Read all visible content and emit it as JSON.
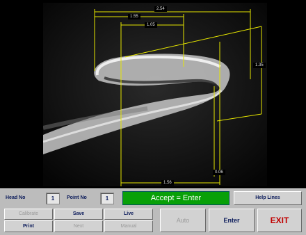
{
  "viewer": {
    "dimensions": [
      "2.54",
      "1.55",
      "1.05",
      "1.35",
      "1.56",
      "0.06"
    ]
  },
  "status": {
    "head_label": "Head No",
    "head_value": "1",
    "point_label": "Point No",
    "point_value": "1",
    "accept_text": "Accept = Enter",
    "help_lines": "Help Lines"
  },
  "buttons": {
    "calibrate": "Calibrate",
    "save": "Save",
    "live": "Live",
    "print": "Print",
    "next": "Next",
    "manual": "Manual",
    "auto": "Auto",
    "enter": "Enter",
    "exit": "EXIT"
  },
  "colors": {
    "accept_bg": "#08a008",
    "exit_text": "#c00000",
    "dimension_lines": "#e6e600"
  }
}
